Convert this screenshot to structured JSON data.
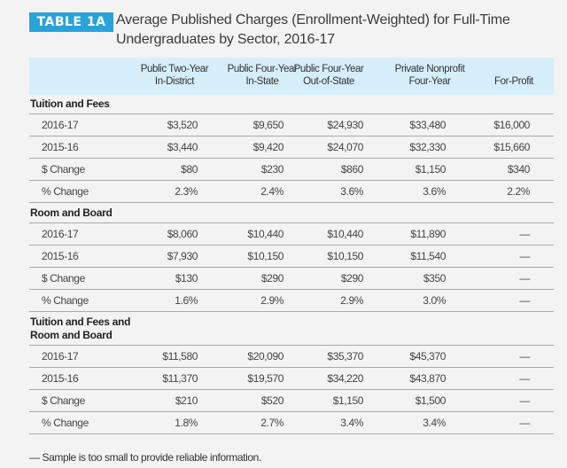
{
  "badge": "TABLE 1A",
  "title": "Average Published Charges (Enrollment-Weighted) for Full-Time Undergraduates by Sector, 2016-17",
  "columns": [
    {
      "line1": "Public Two-Year",
      "line2": "In-District"
    },
    {
      "line1": "Public Four-Year",
      "line2": "In-State"
    },
    {
      "line1": "Public Four-Year",
      "line2": "Out-of-State"
    },
    {
      "line1": "Private Nonprofit",
      "line2": "Four-Year"
    },
    {
      "line1": "",
      "line2": "For-Profit"
    }
  ],
  "colors": {
    "badge": "#29a3d9",
    "header_band": "#d5eefa"
  },
  "sections": [
    {
      "heading": "Tuition and Fees",
      "rows": [
        {
          "label": "2016-17",
          "values": [
            "$3,520",
            "$9,650",
            "$24,930",
            "$33,480",
            "$16,000"
          ]
        },
        {
          "label": "2015-16",
          "values": [
            "$3,440",
            "$9,420",
            "$24,070",
            "$32,330",
            "$15,660"
          ]
        },
        {
          "label": "$ Change",
          "values": [
            "$80",
            "$230",
            "$860",
            "$1,150",
            "$340"
          ]
        },
        {
          "label": "% Change",
          "values": [
            "2.3%",
            "2.4%",
            "3.6%",
            "3.6%",
            "2.2%"
          ]
        }
      ]
    },
    {
      "heading": "Room and Board",
      "rows": [
        {
          "label": "2016-17",
          "values": [
            "$8,060",
            "$10,440",
            "$10,440",
            "$11,890",
            "—"
          ]
        },
        {
          "label": "2015-16",
          "values": [
            "$7,930",
            "$10,150",
            "$10,150",
            "$11,540",
            "—"
          ]
        },
        {
          "label": "$ Change",
          "values": [
            "$130",
            "$290",
            "$290",
            "$350",
            "—"
          ]
        },
        {
          "label": "% Change",
          "values": [
            "1.6%",
            "2.9%",
            "2.9%",
            "3.0%",
            "—"
          ]
        }
      ]
    },
    {
      "heading": "Tuition and Fees and Room and Board",
      "rows": [
        {
          "label": "2016-17",
          "values": [
            "$11,580",
            "$20,090",
            "$35,370",
            "$45,370",
            "—"
          ]
        },
        {
          "label": "2015-16",
          "values": [
            "$11,370",
            "$19,570",
            "$34,220",
            "$43,870",
            "—"
          ]
        },
        {
          "label": "$ Change",
          "values": [
            "$210",
            "$520",
            "$1,150",
            "$1,500",
            "—"
          ]
        },
        {
          "label": "% Change",
          "values": [
            "1.8%",
            "2.7%",
            "3.4%",
            "3.4%",
            "—"
          ]
        }
      ]
    }
  ],
  "footnote": "— Sample is too small to provide reliable information."
}
